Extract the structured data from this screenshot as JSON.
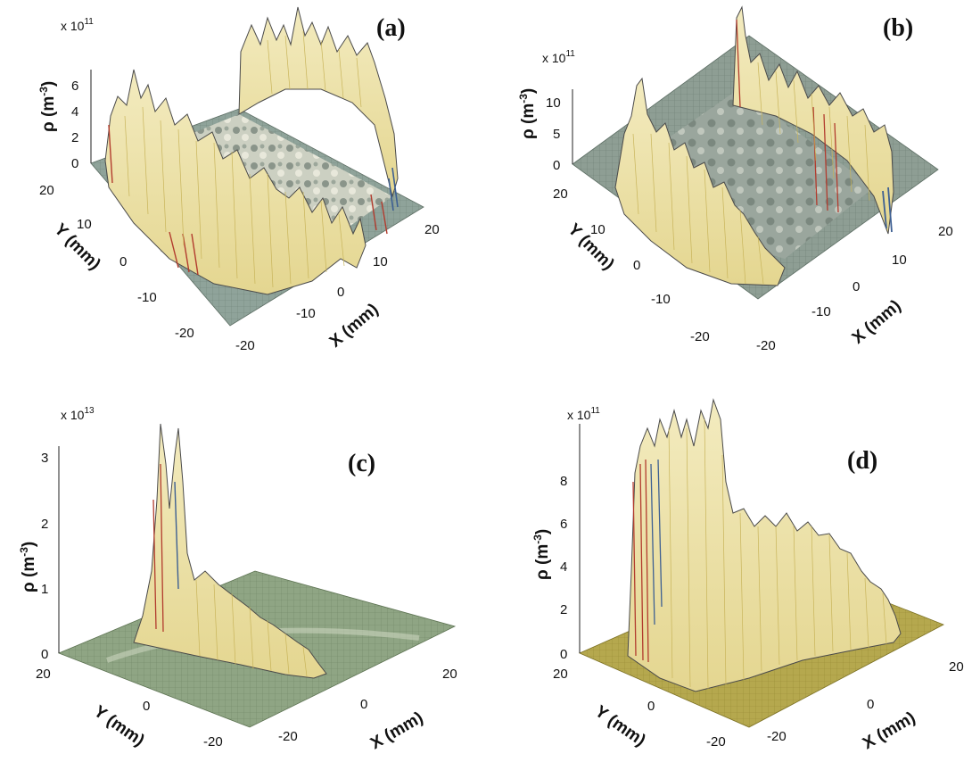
{
  "figure": {
    "panels": [
      {
        "label": "(a)",
        "multiplier_base": "x 10",
        "multiplier_exp": "11",
        "zlabel": "ρ (m",
        "zlabel_exp": "-3",
        "zlabel_end": ")",
        "xlabel": "X (mm)",
        "ylabel": "Y (mm)",
        "z_ticks": [
          "0",
          "2",
          "4",
          "6"
        ],
        "x_ticks": [
          "-20",
          "-10",
          "0",
          "10",
          "20"
        ],
        "y_ticks": [
          "20",
          "10",
          "0",
          "-10",
          "-20"
        ],
        "surface_color": "#e8dca0",
        "floor_color": "#8fa39a"
      },
      {
        "label": "(b)",
        "multiplier_base": "x 10",
        "multiplier_exp": "11",
        "zlabel": "ρ (m",
        "zlabel_exp": "-3",
        "zlabel_end": ")",
        "xlabel": "X (mm)",
        "ylabel": "Y (mm)",
        "z_ticks": [
          "0",
          "5",
          "10"
        ],
        "x_ticks": [
          "-20",
          "-10",
          "0",
          "10",
          "20"
        ],
        "y_ticks": [
          "20",
          "10",
          "0",
          "-10",
          "-20"
        ],
        "surface_color": "#ede0a8",
        "floor_color": "#8e9e94"
      },
      {
        "label": "(c)",
        "multiplier_base": "x 10",
        "multiplier_exp": "13",
        "zlabel": "ρ (m",
        "zlabel_exp": "-3",
        "zlabel_end": ")",
        "xlabel": "X (mm)",
        "ylabel": "Y (mm)",
        "z_ticks": [
          "0",
          "1",
          "2",
          "3"
        ],
        "x_ticks": [
          "-20",
          "0",
          "20"
        ],
        "y_ticks": [
          "20",
          "0",
          "-20"
        ],
        "surface_color": "#eadfa6",
        "floor_color": "#8fa584"
      },
      {
        "label": "(d)",
        "multiplier_base": "x 10",
        "multiplier_exp": "11",
        "zlabel": "ρ (m",
        "zlabel_exp": "-3",
        "zlabel_end": ")",
        "xlabel": "X (mm)",
        "ylabel": "Y (mm)",
        "z_ticks": [
          "0",
          "2",
          "4",
          "6",
          "8"
        ],
        "x_ticks": [
          "-20",
          "0",
          "20"
        ],
        "y_ticks": [
          "20",
          "0",
          "-20"
        ],
        "surface_color": "#f0e6b0",
        "floor_color": "#b5a84e"
      }
    ]
  },
  "chart_data": [
    {
      "type": "surface",
      "title": "(a)",
      "xlabel": "X (mm)",
      "ylabel": "Y (mm)",
      "zlabel": "ρ (m-3)",
      "z_multiplier": "x 10^11",
      "xlim": [
        -20,
        20
      ],
      "ylim": [
        -20,
        20
      ],
      "zlim": [
        0,
        6
      ],
      "features": [
        {
          "description": "ring-shaped band at radius ~20 mm",
          "peak_z": 6.2
        },
        {
          "description": "interior plateau",
          "z": 1.0
        }
      ]
    },
    {
      "type": "surface",
      "title": "(b)",
      "xlabel": "X (mm)",
      "ylabel": "Y (mm)",
      "zlabel": "ρ (m-3)",
      "z_multiplier": "x 10^11",
      "xlim": [
        -20,
        20
      ],
      "ylim": [
        -20,
        20
      ],
      "zlim": [
        0,
        10
      ],
      "features": [
        {
          "description": "front crescent band",
          "peak_z": 9.0
        },
        {
          "description": "back crescent band",
          "peak_z": 12.0
        },
        {
          "description": "interior",
          "z": 0.5
        }
      ]
    },
    {
      "type": "surface",
      "title": "(c)",
      "xlabel": "X (mm)",
      "ylabel": "Y (mm)",
      "zlabel": "ρ (m-3)",
      "z_multiplier": "x 10^13",
      "xlim": [
        -20,
        20
      ],
      "ylim": [
        -20,
        20
      ],
      "zlim": [
        0,
        3
      ],
      "features": [
        {
          "description": "twin sharp peaks",
          "peak_z": [
            3.1,
            2.9
          ]
        },
        {
          "description": "ridge decaying along diagonal",
          "z": 1.0
        }
      ]
    },
    {
      "type": "surface",
      "title": "(d)",
      "xlabel": "X (mm)",
      "ylabel": "Y (mm)",
      "zlabel": "ρ (m-3)",
      "z_multiplier": "x 10^11",
      "xlim": [
        -20,
        20
      ],
      "ylim": [
        -20,
        20
      ],
      "zlim": [
        0,
        9
      ],
      "features": [
        {
          "description": "tall wall at one side",
          "peak_z": 9.5
        },
        {
          "description": "decaying plateau toward opposite side",
          "z": 6.0
        }
      ]
    }
  ]
}
